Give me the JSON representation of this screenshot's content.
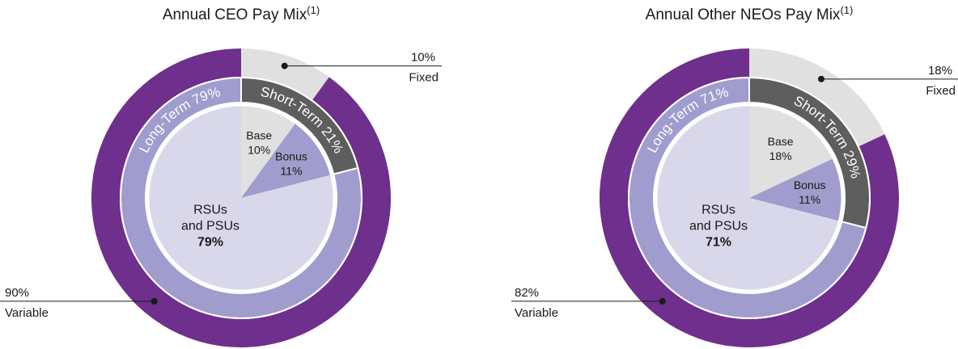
{
  "colors": {
    "variable": "#6f2f8c",
    "fixed": "#e0e0e0",
    "long_term": "#a09ccd",
    "short_term": "#5e5e5e",
    "rsus": "#d9d7ea",
    "base": "#e0e0e0",
    "bonus": "#a09ccd",
    "leader_line": "#1a1a1a"
  },
  "chart_data": [
    {
      "type": "pie",
      "title": "Annual CEO Pay Mix",
      "title_sup": "(1)",
      "outer_ring": [
        {
          "name": "Fixed",
          "value": 10,
          "label": "10%"
        },
        {
          "name": "Variable",
          "value": 90,
          "label": "90%"
        }
      ],
      "middle_ring": [
        {
          "name": "Short-Term",
          "value": 21,
          "label": "Short-Term 21%"
        },
        {
          "name": "Long-Term",
          "value": 79,
          "label": "Long-Term 79%"
        }
      ],
      "inner_pie": [
        {
          "name": "Base",
          "value": 10,
          "label_lines": [
            "Base",
            "10%"
          ]
        },
        {
          "name": "Bonus",
          "value": 11,
          "label_lines": [
            "Bonus",
            "11%"
          ]
        },
        {
          "name": "RSUs and PSUs",
          "value": 79,
          "label_lines": [
            "RSUs",
            "and PSUs",
            "79%"
          ]
        }
      ]
    },
    {
      "type": "pie",
      "title": "Annual Other NEOs Pay Mix",
      "title_sup": "(1)",
      "outer_ring": [
        {
          "name": "Fixed",
          "value": 18,
          "label": "18%"
        },
        {
          "name": "Variable",
          "value": 82,
          "label": "82%"
        }
      ],
      "middle_ring": [
        {
          "name": "Short-Term",
          "value": 29,
          "label": "Short-Term 29%"
        },
        {
          "name": "Long-Term",
          "value": 71,
          "label": "Long-Term 71%"
        }
      ],
      "inner_pie": [
        {
          "name": "Base",
          "value": 18,
          "label_lines": [
            "Base",
            "18%"
          ]
        },
        {
          "name": "Bonus",
          "value": 11,
          "label_lines": [
            "Bonus",
            "11%"
          ]
        },
        {
          "name": "RSUs and PSUs",
          "value": 71,
          "label_lines": [
            "RSUs",
            "and PSUs",
            "71%"
          ]
        }
      ]
    }
  ]
}
